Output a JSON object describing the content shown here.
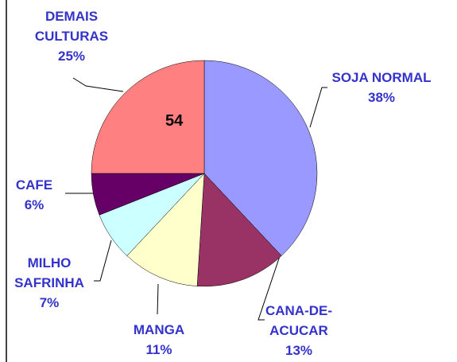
{
  "chart_data": {
    "type": "pie",
    "categories": [
      "SOJA  NORMAL",
      "CANA-DE-ACUCAR",
      "MANGA",
      "MILHO SAFRINHA",
      "CAFE",
      "DEMAIS CULTURAS"
    ],
    "values": [
      38,
      13,
      11,
      7,
      6,
      25
    ],
    "value_labels": [
      "38%",
      "13%",
      "11%",
      "7%",
      "6%",
      "25%"
    ],
    "colors": [
      "#9999ff",
      "#993366",
      "#ffffcc",
      "#ccffff",
      "#660066",
      "#ff8080"
    ],
    "annotation": "54"
  }
}
